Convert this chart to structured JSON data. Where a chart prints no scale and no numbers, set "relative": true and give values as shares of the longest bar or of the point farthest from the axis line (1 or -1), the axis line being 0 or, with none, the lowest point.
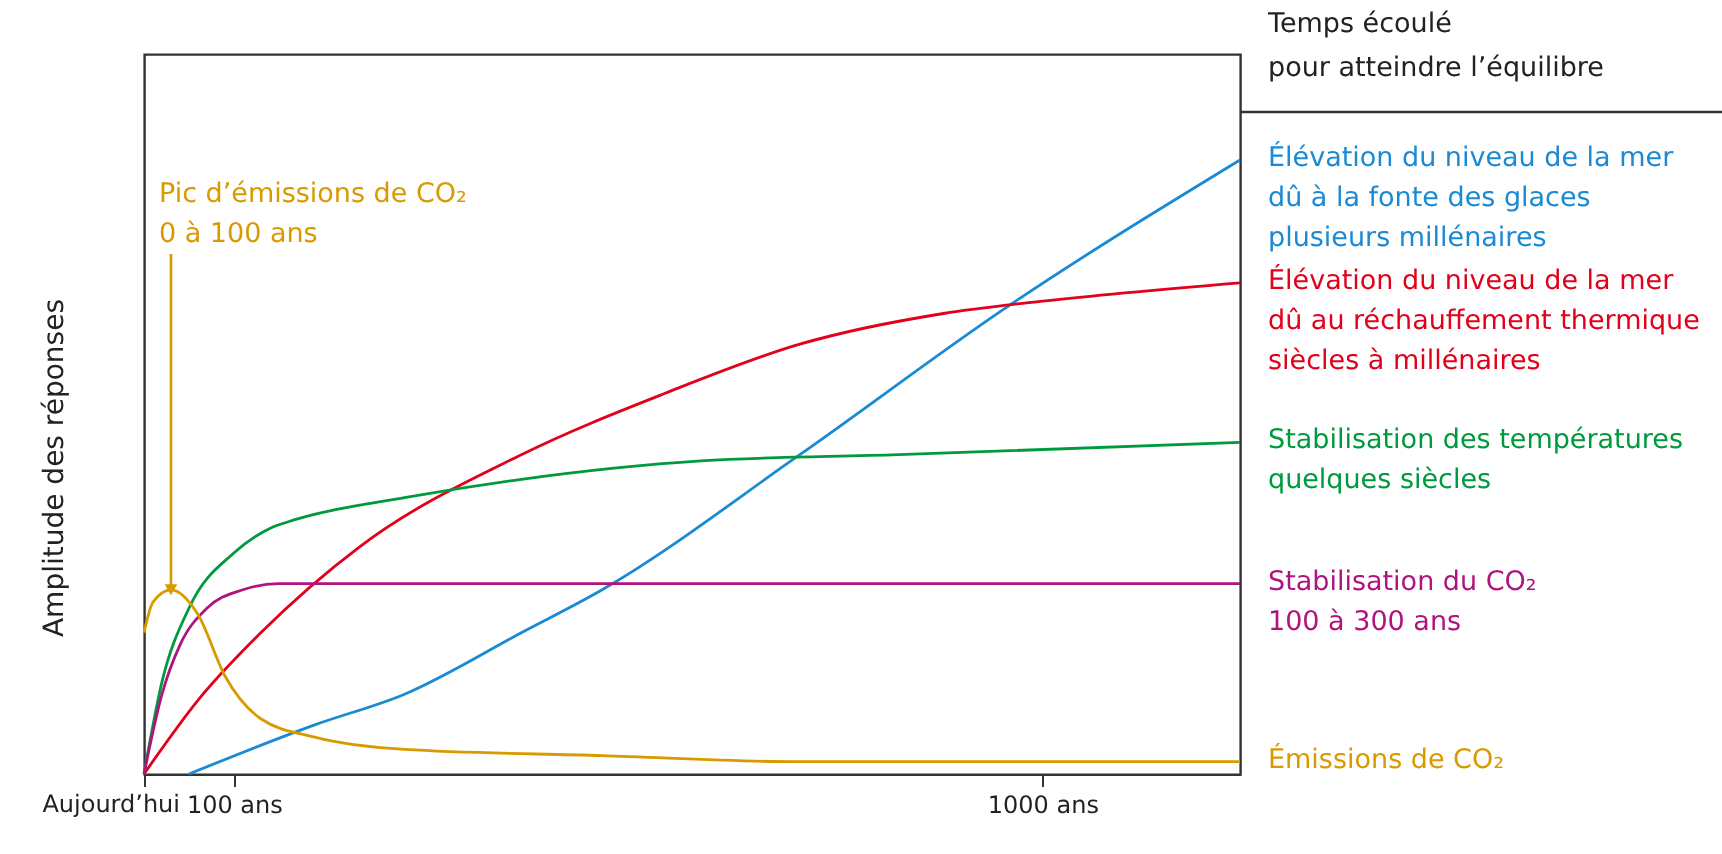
{
  "chart_data": {
    "type": "line",
    "relative": true,
    "ylabel": "Amplitude des réponses",
    "legend_title": "Temps écoulé\npour atteindre l’équilibre",
    "xlim": [
      0,
      1220
    ],
    "xticks": [
      {
        "value": 0,
        "label": null
      },
      {
        "value": 100,
        "label": "100 ans"
      },
      {
        "value": 1000,
        "label": "1000 ans"
      }
    ],
    "grid": false,
    "annotations": [
      {
        "text": "Pic d’émissions de CO₂\n0 à 100 ans",
        "x": 30,
        "y": 0.3
      },
      {
        "text": "Aujourd’hui",
        "x": 0,
        "y": 0
      }
    ],
    "series": [
      {
        "name": "Élévation du niveau de la mer\ndû à la fonte des glaces\nplusieurs millénaires",
        "color": "#1a8ad4",
        "x": [
          50,
          190,
          290,
          420,
          510,
          730,
          960,
          1220
        ],
        "values": [
          0,
          0.08,
          0.13,
          0.23,
          0.3,
          0.52,
          0.76,
          1.0
        ]
      },
      {
        "name": "Élévation du niveau de la mer\ndû au réchauffement thermique\nsiècles à millénaires",
        "color": "#e2001a",
        "x": [
          0,
          60,
          130,
          240,
          420,
          580,
          730,
          890,
          1000,
          1220
        ],
        "values": [
          0,
          0.12,
          0.23,
          0.37,
          0.52,
          0.62,
          0.7,
          0.75,
          0.77,
          0.8
        ]
      },
      {
        "name": "Stabilisation des températures\nquelques siècles",
        "color": "#009a3e",
        "x": [
          0,
          20,
          50,
          100,
          140,
          170,
          290,
          420,
          620,
          840,
          1220
        ],
        "values": [
          0,
          0.15,
          0.27,
          0.36,
          0.4,
          0.415,
          0.45,
          0.48,
          0.51,
          0.52,
          0.54
        ]
      },
      {
        "name": "Stabilisation du CO₂\n100 à 300 ans",
        "color": "#b0137f",
        "x": [
          0,
          20,
          40,
          70,
          110,
          150,
          240,
          1220
        ],
        "values": [
          0,
          0.13,
          0.21,
          0.27,
          0.3,
          0.31,
          0.31,
          0.31
        ]
      },
      {
        "name": "Émissions de CO₂",
        "color": "#d99a00",
        "x": [
          0,
          10,
          30,
          60,
          90,
          130,
          190,
          290,
          510,
          730,
          1000,
          1220
        ],
        "values": [
          0.23,
          0.28,
          0.3,
          0.26,
          0.16,
          0.09,
          0.06,
          0.04,
          0.03,
          0.02,
          0.02,
          0.02
        ]
      }
    ]
  }
}
